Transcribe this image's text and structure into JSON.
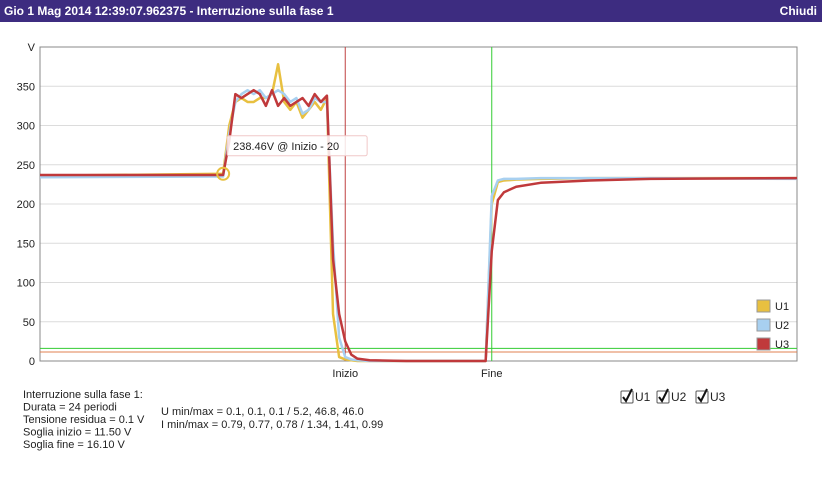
{
  "header": {
    "title": "Gio 1 Mag 2014 12:39:07.962375 - Interruzione sulla fase 1",
    "close": "Chiudi"
  },
  "chart_data": {
    "type": "line",
    "y_unit": "V",
    "x": [
      0,
      30,
      31,
      32,
      33,
      34,
      35,
      36,
      37,
      38,
      39,
      40,
      41,
      42,
      43,
      44,
      45,
      46,
      47,
      48,
      49,
      50,
      51,
      52,
      54,
      60,
      73,
      74,
      75,
      76,
      78,
      82,
      90,
      100,
      124
    ],
    "series": [
      {
        "name": "U1",
        "color": "#e8c040",
        "values": [
          236,
          238.46,
          300,
          330,
          335,
          330,
          330,
          335,
          335,
          340,
          378,
          330,
          320,
          330,
          310,
          320,
          330,
          320,
          335,
          60,
          5,
          2,
          1,
          0,
          0,
          0,
          0,
          200,
          228,
          230,
          231,
          232,
          233,
          233,
          233
        ]
      },
      {
        "name": "U2",
        "color": "#a8d0f0",
        "values": [
          234,
          235,
          290,
          330,
          340,
          345,
          340,
          345,
          335,
          340,
          345,
          340,
          330,
          335,
          315,
          320,
          335,
          330,
          330,
          150,
          30,
          5,
          2,
          1,
          0,
          0,
          0,
          210,
          230,
          232,
          232,
          233,
          233,
          233,
          232
        ]
      },
      {
        "name": "U3",
        "color": "#c0393b",
        "values": [
          237,
          237,
          280,
          340,
          335,
          340,
          345,
          340,
          325,
          345,
          325,
          335,
          325,
          330,
          335,
          325,
          340,
          330,
          338,
          130,
          60,
          25,
          8,
          3,
          1,
          0,
          0,
          140,
          205,
          215,
          222,
          227,
          230,
          232,
          233
        ]
      }
    ],
    "xlim": [
      0,
      124
    ],
    "xticks": [
      {
        "value": 50,
        "label": "Inizio"
      },
      {
        "value": 74,
        "label": "Fine"
      }
    ],
    "xtick_line_colors": [
      "#c04040",
      "#33cc33"
    ],
    "ylim": [
      0,
      400
    ],
    "yticks": [
      0,
      50,
      100,
      150,
      200,
      250,
      300,
      350
    ],
    "grid": true,
    "hlines": [
      {
        "value": 11.5,
        "color": "#e08050"
      },
      {
        "value": 16.1,
        "color": "#33cc33"
      }
    ],
    "tooltip": {
      "text": "238.46V @ Inizio - 20",
      "series": 0,
      "point": 1
    },
    "legend": "bottom-right"
  },
  "info": {
    "left": [
      "Interruzione sulla fase 1:",
      "Durata = 24 periodi",
      "Tensione residua = 0.1 V",
      "Soglia inizio = 11.50 V",
      "Soglia fine = 16.10 V"
    ],
    "right": [
      "U min/max = 0.1, 0.1, 0.1 / 5.2, 46.8, 46.0",
      "I min/max = 0.79, 0.77, 0.78 / 1.34, 1.41, 0.99"
    ]
  },
  "controls": {
    "checkboxes": [
      {
        "label": "U1",
        "checked": true
      },
      {
        "label": "U2",
        "checked": true
      },
      {
        "label": "U3",
        "checked": true
      }
    ]
  }
}
